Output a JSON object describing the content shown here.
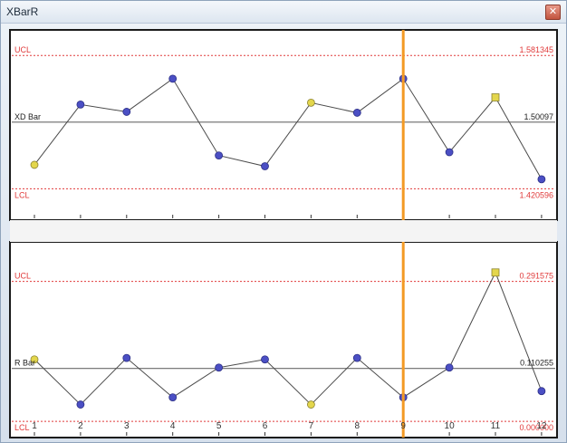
{
  "window": {
    "title": "XBarR",
    "close_glyph": "✕",
    "close_icon": "close-icon"
  },
  "colors": {
    "limit_line": "#e03a3a",
    "center_line": "#6a6a6a",
    "cursor_line": "#f39a25",
    "point_normal": "#4b4fc4",
    "point_flag": "#e3d64c",
    "series_line": "#4a4a4a"
  },
  "chart_data": [
    {
      "type": "line",
      "name": "xbar",
      "x": [
        1,
        2,
        3,
        4,
        5,
        6,
        7,
        8,
        9,
        10,
        11,
        12
      ],
      "ucl_label": "UCL",
      "ucl_value": "1.581345",
      "ucl": 1.581345,
      "center_label": "XD Bar",
      "center_value": "1.50097",
      "center": 1.50097,
      "lcl_label": "LCL",
      "lcl_value": "1.420596",
      "lcl": 1.420596,
      "ylim": [
        1.385,
        1.61
      ],
      "values": [
        1.4495,
        1.5222,
        1.5134,
        1.5533,
        1.4608,
        1.4478,
        1.5244,
        1.5123,
        1.5533,
        1.4647,
        1.5308,
        1.4321
      ],
      "flags": [
        "y",
        "n",
        "n",
        "n",
        "n",
        "n",
        "y",
        "n",
        "n",
        "n",
        "y",
        "n"
      ],
      "cursor_x": 9
    },
    {
      "type": "line",
      "name": "range",
      "x": [
        1,
        2,
        3,
        4,
        5,
        6,
        7,
        8,
        9,
        10,
        11,
        12
      ],
      "ucl_label": "UCL",
      "ucl_value": "0.291575",
      "ucl": 0.291575,
      "center_label": "R Bar",
      "center_value": "0.110255",
      "center": 0.110255,
      "lcl_label": "LCL",
      "lcl_value": "0.000000",
      "lcl": 0.0,
      "ylim": [
        -0.03,
        0.37
      ],
      "values": [
        0.129,
        0.035,
        0.132,
        0.05,
        0.112,
        0.129,
        0.035,
        0.132,
        0.05,
        0.112,
        0.31,
        0.063
      ],
      "flags": [
        "y",
        "n",
        "n",
        "n",
        "n",
        "n",
        "y",
        "n",
        "n",
        "n",
        "y",
        "n"
      ],
      "cursor_x": 9,
      "tick_labels": [
        "1",
        "2",
        "3",
        "4",
        "5",
        "6",
        "7",
        "8",
        "9",
        "10",
        "11",
        "12"
      ]
    }
  ]
}
